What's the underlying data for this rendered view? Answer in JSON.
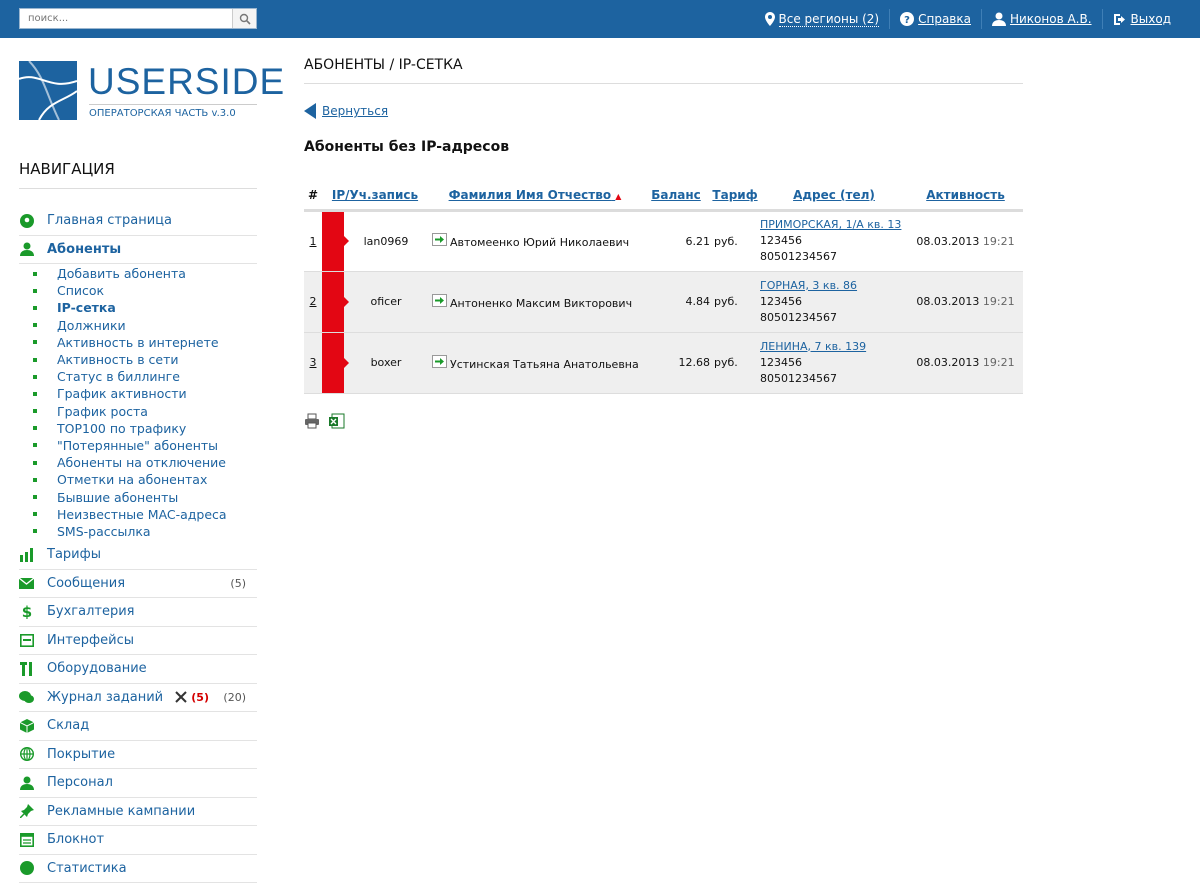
{
  "topbar": {
    "search_placeholder": "поиск...",
    "regions": "Все регионы (2)",
    "help": "Справка",
    "user": "Никонов А.В.",
    "logout": "Выход"
  },
  "logo": {
    "word": "USERSIDE",
    "subtitle": "ОПЕРАТОРСКАЯ ЧАСТЬ v.3.0"
  },
  "nav": {
    "title": "НАВИГАЦИЯ",
    "home": "Главная страница",
    "subscribers": "Абоненты",
    "subitems": [
      "Добавить абонента",
      "Список",
      "IP-сетка",
      "Должники",
      "Активность в интернете",
      "Активность в сети",
      "Статус в биллинге",
      "График активности",
      "График роста",
      "TOP100 по трафику",
      "\"Потерянные\" абоненты",
      "Абоненты на отключение",
      "Отметки на абонентах",
      "Бывшие абоненты",
      "Неизвестные MAC-адреса",
      "SMS-рассылка"
    ],
    "tariffs": "Тарифы",
    "messages": "Сообщения",
    "messages_count": "(5)",
    "accounting": "Бухгалтерия",
    "interfaces": "Интерфейсы",
    "equipment": "Оборудование",
    "tasks": "Журнал заданий",
    "tasks_red": "(5)",
    "tasks_count": "(20)",
    "warehouse": "Склад",
    "coverage": "Покрытие",
    "staff": "Персонал",
    "ads": "Рекламные кампании",
    "notepad": "Блокнот",
    "statistics": "Статистика"
  },
  "main": {
    "title": "АБОНЕНТЫ / IP-СЕТКА",
    "back": "Вернуться",
    "section": "Абоненты без IP-адресов",
    "columns": {
      "num": "#",
      "login": "IP/Уч.запись",
      "name": "Фамилия Имя Отчество",
      "balance": "Баланс",
      "tariff": "Тариф",
      "address": "Адрес (тел)",
      "activity": "Активность"
    },
    "rows": [
      {
        "idx": "1",
        "login": "lan0969",
        "name": "Автомеенко Юрий Николаевич",
        "balance": "6.21",
        "currency": "руб.",
        "address": "ПРИМОРСКАЯ, 1/А кв. 13",
        "phone1": "123456",
        "phone2": "80501234567",
        "date": "08.03.2013",
        "time": "19:21"
      },
      {
        "idx": "2",
        "login": "oficer",
        "name": "Антоненко Максим Викторович",
        "balance": "4.84",
        "currency": "руб.",
        "address": "ГОРНАЯ, 3 кв. 86",
        "phone1": "123456",
        "phone2": "80501234567",
        "date": "08.03.2013",
        "time": "19:21"
      },
      {
        "idx": "3",
        "login": "boxer",
        "name": "Устинская Татьяна Анатольевна",
        "balance": "12.68",
        "currency": "руб.",
        "address": "ЛЕНИНА, 7 кв. 139",
        "phone1": "123456",
        "phone2": "80501234567",
        "date": "08.03.2013",
        "time": "19:21"
      }
    ]
  },
  "colors": {
    "brand": "#1d63a0",
    "flag": "#e30613",
    "bullet": "#1a9a2a"
  }
}
